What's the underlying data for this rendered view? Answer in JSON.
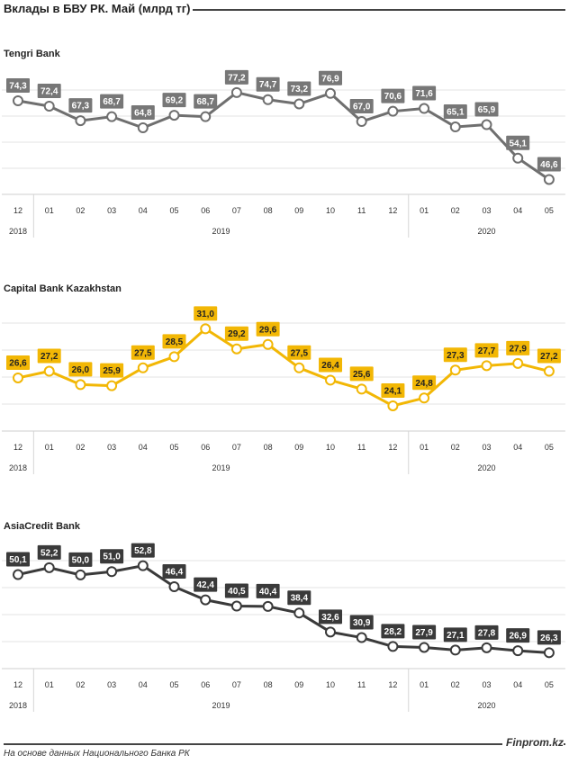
{
  "page": {
    "title": "Вклады в БВУ РК. Май (млрд тг)",
    "source": "На основе данных Национального  Банка РК",
    "brand": "Finprom.kz"
  },
  "chart_data": [
    {
      "type": "line",
      "title": "Tengri Bank",
      "categories": [
        "12",
        "01",
        "02",
        "03",
        "04",
        "05",
        "06",
        "07",
        "08",
        "09",
        "10",
        "11",
        "12",
        "01",
        "02",
        "03",
        "04",
        "05"
      ],
      "years": [
        {
          "label": "2018",
          "span": [
            0,
            0
          ]
        },
        {
          "label": "2019",
          "span": [
            1,
            12
          ]
        },
        {
          "label": "2020",
          "span": [
            13,
            17
          ]
        }
      ],
      "values": [
        74.3,
        72.4,
        67.3,
        68.7,
        64.8,
        69.2,
        68.7,
        77.2,
        74.7,
        73.2,
        76.9,
        67.0,
        70.6,
        71.6,
        65.1,
        65.9,
        54.1,
        46.6
      ],
      "labels": [
        "74,3",
        "72,4",
        "67,3",
        "68,7",
        "64,8",
        "69,2",
        "68,7",
        "77,2",
        "74,7",
        "73,2",
        "76,9",
        "67,0",
        "70,6",
        "71,6",
        "65,1",
        "65,9",
        "54,1",
        "46,6"
      ],
      "ylim": [
        42,
        80
      ],
      "colors": {
        "line": "#6f6f6f",
        "label_bg": "#777777",
        "label_text": "#ffffff",
        "marker_fill": "#ffffff"
      }
    },
    {
      "type": "line",
      "title": "Capital Bank Kazakhstan",
      "categories": [
        "12",
        "01",
        "02",
        "03",
        "04",
        "05",
        "06",
        "07",
        "08",
        "09",
        "10",
        "11",
        "12",
        "01",
        "02",
        "03",
        "04",
        "05"
      ],
      "years": [
        {
          "label": "2018",
          "span": [
            0,
            0
          ]
        },
        {
          "label": "2019",
          "span": [
            1,
            12
          ]
        },
        {
          "label": "2020",
          "span": [
            13,
            17
          ]
        }
      ],
      "values": [
        26.6,
        27.2,
        26.0,
        25.9,
        27.5,
        28.5,
        31.0,
        29.2,
        29.6,
        27.5,
        26.4,
        25.6,
        24.1,
        24.8,
        27.3,
        27.7,
        27.9,
        27.2
      ],
      "labels": [
        "26,6",
        "27,2",
        "26,0",
        "25,9",
        "27,5",
        "28,5",
        "31,0",
        "29,2",
        "29,6",
        "27,5",
        "26,4",
        "25,6",
        "24,1",
        "24,8",
        "27,3",
        "27,7",
        "27,9",
        "27,2"
      ],
      "ylim": [
        22,
        32
      ],
      "colors": {
        "line": "#f2b705",
        "label_bg": "#f2b705",
        "label_text": "#222222",
        "marker_fill": "#ffffff"
      }
    },
    {
      "type": "line",
      "title": "AsiaCredit Bank",
      "categories": [
        "12",
        "01",
        "02",
        "03",
        "04",
        "05",
        "06",
        "07",
        "08",
        "09",
        "10",
        "11",
        "12",
        "01",
        "02",
        "03",
        "04",
        "05"
      ],
      "years": [
        {
          "label": "2018",
          "span": [
            0,
            0
          ]
        },
        {
          "label": "2019",
          "span": [
            1,
            12
          ]
        },
        {
          "label": "2020",
          "span": [
            13,
            17
          ]
        }
      ],
      "values": [
        50.1,
        52.2,
        50.0,
        51.0,
        52.8,
        46.4,
        42.4,
        40.5,
        40.4,
        38.4,
        32.6,
        30.9,
        28.2,
        27.9,
        27.1,
        27.8,
        26.9,
        26.3
      ],
      "labels": [
        "50,1",
        "52,2",
        "50,0",
        "51,0",
        "52,8",
        "46,4",
        "42,4",
        "40,5",
        "40,4",
        "38,4",
        "32,6",
        "30,9",
        "28,2",
        "27,9",
        "27,1",
        "27,8",
        "26,9",
        "26,3"
      ],
      "ylim": [
        22,
        56
      ],
      "colors": {
        "line": "#3a3a3a",
        "label_bg": "#3a3a3a",
        "label_text": "#ffffff",
        "marker_fill": "#ffffff"
      }
    }
  ]
}
